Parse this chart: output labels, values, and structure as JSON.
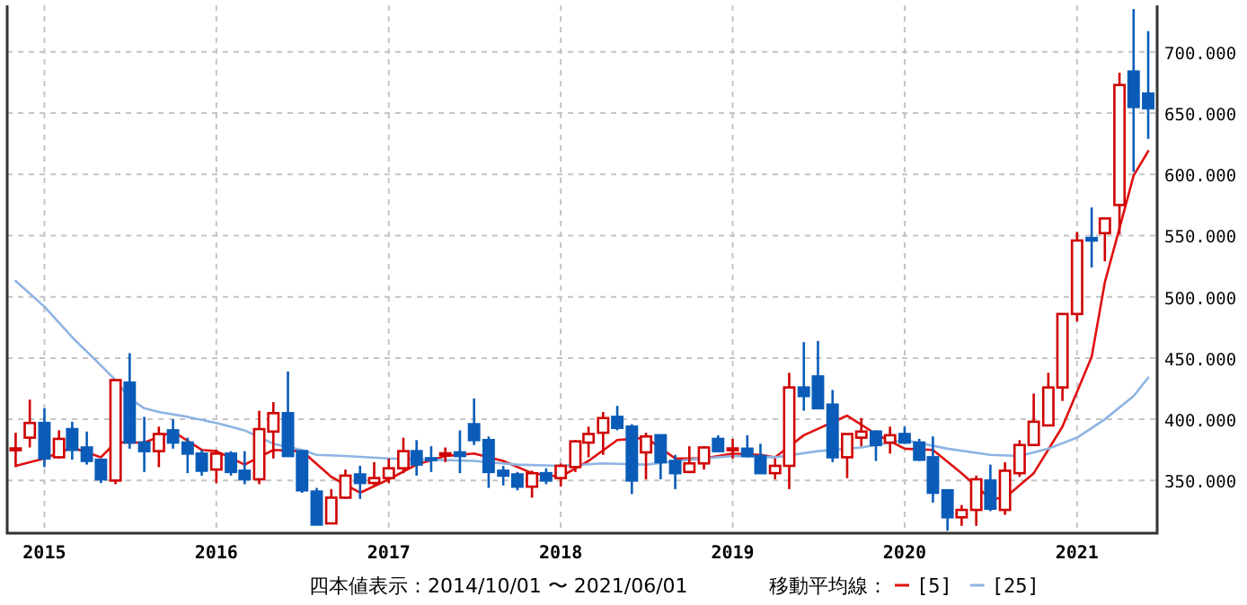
{
  "chart_data": {
    "type": "candlestick",
    "x": [
      "2014-11",
      "2014-12",
      "2015-01",
      "2015-02",
      "2015-03",
      "2015-04",
      "2015-05",
      "2015-06",
      "2015-07",
      "2015-08",
      "2015-09",
      "2015-10",
      "2015-11",
      "2015-12",
      "2016-01",
      "2016-02",
      "2016-03",
      "2016-04",
      "2016-05",
      "2016-06",
      "2016-07",
      "2016-08",
      "2016-09",
      "2016-10",
      "2016-11",
      "2016-12",
      "2017-01",
      "2017-02",
      "2017-03",
      "2017-04",
      "2017-05",
      "2017-06",
      "2017-07",
      "2017-08",
      "2017-09",
      "2017-10",
      "2017-11",
      "2017-12",
      "2018-01",
      "2018-02",
      "2018-03",
      "2018-04",
      "2018-05",
      "2018-06",
      "2018-07",
      "2018-08",
      "2018-09",
      "2018-10",
      "2018-11",
      "2018-12",
      "2019-01",
      "2019-02",
      "2019-03",
      "2019-04",
      "2019-05",
      "2019-06",
      "2019-07",
      "2019-08",
      "2019-09",
      "2019-10",
      "2019-11",
      "2019-12",
      "2020-01",
      "2020-02",
      "2020-03",
      "2020-04",
      "2020-05",
      "2020-06",
      "2020-07",
      "2020-08",
      "2020-09",
      "2020-10",
      "2020-11",
      "2020-12",
      "2021-01",
      "2021-02",
      "2021-03",
      "2021-04",
      "2021-05",
      "2021-06"
    ],
    "ohlc": [
      [
        375,
        389,
        361,
        376
      ],
      [
        385,
        416,
        377,
        397
      ],
      [
        397,
        409,
        361,
        368
      ],
      [
        369,
        391,
        368,
        384
      ],
      [
        392,
        398,
        367,
        375
      ],
      [
        377,
        390,
        363,
        366
      ],
      [
        367,
        367,
        348,
        351
      ],
      [
        350,
        432,
        347,
        432
      ],
      [
        430,
        454,
        376,
        381
      ],
      [
        381,
        402,
        357,
        374
      ],
      [
        374,
        394,
        361,
        388
      ],
      [
        391,
        400,
        376,
        381
      ],
      [
        381,
        385,
        356,
        372
      ],
      [
        372,
        375,
        354,
        358
      ],
      [
        359,
        375,
        348,
        372
      ],
      [
        372,
        374,
        354,
        357
      ],
      [
        358,
        374,
        347,
        351
      ],
      [
        351,
        407,
        347,
        392
      ],
      [
        390,
        414,
        368,
        405
      ],
      [
        405,
        439,
        370,
        370
      ],
      [
        374,
        374,
        340,
        342
      ],
      [
        341,
        344,
        314,
        314
      ],
      [
        315,
        343,
        315,
        336
      ],
      [
        336,
        359,
        335,
        354
      ],
      [
        355,
        362,
        335,
        348
      ],
      [
        348,
        365,
        346,
        352
      ],
      [
        352,
        368,
        348,
        360
      ],
      [
        360,
        385,
        356,
        374
      ],
      [
        374,
        383,
        354,
        363
      ],
      [
        368,
        378,
        357,
        367
      ],
      [
        371,
        377,
        365,
        372
      ],
      [
        373,
        391,
        356,
        370
      ],
      [
        396,
        417,
        379,
        383
      ],
      [
        383,
        386,
        344,
        357
      ],
      [
        358,
        362,
        346,
        354
      ],
      [
        355,
        357,
        342,
        345
      ],
      [
        345,
        358,
        336,
        356
      ],
      [
        356,
        360,
        347,
        350
      ],
      [
        352,
        364,
        345,
        362
      ],
      [
        361,
        383,
        357,
        382
      ],
      [
        381,
        394,
        369,
        388
      ],
      [
        389,
        406,
        371,
        401
      ],
      [
        402,
        411,
        391,
        393
      ],
      [
        394,
        396,
        339,
        350
      ],
      [
        373,
        389,
        351,
        386
      ],
      [
        387,
        387,
        351,
        365
      ],
      [
        366,
        371,
        343,
        356
      ],
      [
        357,
        378,
        356,
        364
      ],
      [
        364,
        378,
        359,
        377
      ],
      [
        384,
        387,
        373,
        374
      ],
      [
        375,
        384,
        368,
        376
      ],
      [
        376,
        387,
        369,
        370
      ],
      [
        370,
        380,
        356,
        356
      ],
      [
        356,
        368,
        351,
        362
      ],
      [
        362,
        438,
        343,
        426
      ],
      [
        426,
        463,
        407,
        419
      ],
      [
        435,
        464,
        409,
        409
      ],
      [
        412,
        424,
        365,
        369
      ],
      [
        369,
        388,
        352,
        388
      ],
      [
        385,
        401,
        378,
        390
      ],
      [
        390,
        391,
        366,
        379
      ],
      [
        381,
        394,
        372,
        387
      ],
      [
        388,
        394,
        380,
        381
      ],
      [
        381,
        384,
        366,
        367
      ],
      [
        369,
        386,
        332,
        340
      ],
      [
        342,
        343,
        309,
        320
      ],
      [
        320,
        330,
        313,
        326
      ],
      [
        326,
        354,
        313,
        351
      ],
      [
        350,
        363,
        325,
        327
      ],
      [
        326,
        365,
        322,
        358
      ],
      [
        356,
        383,
        353,
        379
      ],
      [
        379,
        421,
        379,
        398
      ],
      [
        395,
        438,
        395,
        426
      ],
      [
        426,
        486,
        415,
        486
      ],
      [
        486,
        553,
        480,
        546
      ],
      [
        548,
        573,
        524,
        546
      ],
      [
        552,
        564,
        529,
        564
      ],
      [
        575,
        683,
        551,
        673
      ],
      [
        684,
        735,
        602,
        655
      ],
      [
        666,
        717,
        629,
        654
      ]
    ],
    "series": [
      {
        "name": "[5]",
        "type": "line",
        "color": "#e01010",
        "x": [
          "2014-11",
          "2015-01",
          "2015-03",
          "2015-05",
          "2015-06",
          "2015-08",
          "2015-10",
          "2015-12",
          "2016-01",
          "2016-03",
          "2016-05",
          "2016-07",
          "2016-09",
          "2016-11",
          "2017-01",
          "2017-03",
          "2017-05",
          "2017-07",
          "2017-09",
          "2017-11",
          "2018-01",
          "2018-03",
          "2018-05",
          "2018-07",
          "2018-09",
          "2018-11",
          "2019-01",
          "2019-03",
          "2019-04",
          "2019-06",
          "2019-09",
          "2019-11",
          "2020-01",
          "2020-03",
          "2020-05",
          "2020-07",
          "2020-08",
          "2020-10",
          "2020-12",
          "2021-02",
          "2021-03",
          "2021-04",
          "2021-05",
          "2021-06"
        ],
        "values": [
          362,
          368,
          377,
          369,
          381,
          381,
          390,
          375,
          374,
          363,
          375,
          374,
          353,
          340,
          351,
          363,
          370,
          372,
          366,
          356,
          353,
          366,
          383,
          385,
          368,
          368,
          372,
          371,
          369,
          387,
          403,
          388,
          376,
          375,
          356,
          335,
          336,
          356,
          394,
          451,
          512,
          556,
          599,
          619
        ]
      },
      {
        "name": "[25]",
        "type": "line",
        "color": "#8db4e2",
        "x": [
          "2014-11",
          "2015-01",
          "2015-03",
          "2015-05",
          "2015-06",
          "2015-07",
          "2015-08",
          "2015-09",
          "2015-11",
          "2016-01",
          "2016-03",
          "2016-05",
          "2016-07",
          "2016-08",
          "2016-10",
          "2017-01",
          "2017-04",
          "2017-07",
          "2017-10",
          "2018-01",
          "2018-04",
          "2018-07",
          "2018-10",
          "2019-01",
          "2019-04",
          "2019-07",
          "2019-10",
          "2020-01",
          "2020-04",
          "2020-07",
          "2020-09",
          "2020-11",
          "2021-01",
          "2021-03",
          "2021-05",
          "2021-06"
        ],
        "values": [
          513,
          492,
          467,
          444,
          432,
          417,
          409,
          406,
          402,
          397,
          391,
          380,
          375,
          371,
          370,
          368,
          367,
          366,
          363,
          362,
          364,
          363,
          367,
          370,
          369,
          374,
          377,
          383,
          376,
          371,
          370,
          376,
          385,
          400,
          419,
          434
        ]
      }
    ],
    "xlim": [
      "2014-10-14",
      "2021-06-20"
    ],
    "xticks": [
      {
        "value": "2015-01",
        "label": "2015"
      },
      {
        "value": "2016-01",
        "label": "2016"
      },
      {
        "value": "2017-01",
        "label": "2017"
      },
      {
        "value": "2018-01",
        "label": "2018"
      },
      {
        "value": "2019-01",
        "label": "2019"
      },
      {
        "value": "2020-01",
        "label": "2020"
      },
      {
        "value": "2021-01",
        "label": "2021"
      }
    ],
    "ylim": [
      307,
      738
    ],
    "yticks": [
      {
        "value": 350,
        "label": "350.000"
      },
      {
        "value": 400,
        "label": "400.000"
      },
      {
        "value": 450,
        "label": "450.000"
      },
      {
        "value": 500,
        "label": "500.000"
      },
      {
        "value": 550,
        "label": "550.000"
      },
      {
        "value": 600,
        "label": "600.000"
      },
      {
        "value": 650,
        "label": "650.000"
      },
      {
        "value": 700,
        "label": "700.000"
      }
    ],
    "grid": true,
    "legend": "bottom",
    "legend_title": "移動平均線：",
    "annotations": [
      "四本値表示：2014/10/01 〜 2021/06/01"
    ]
  }
}
